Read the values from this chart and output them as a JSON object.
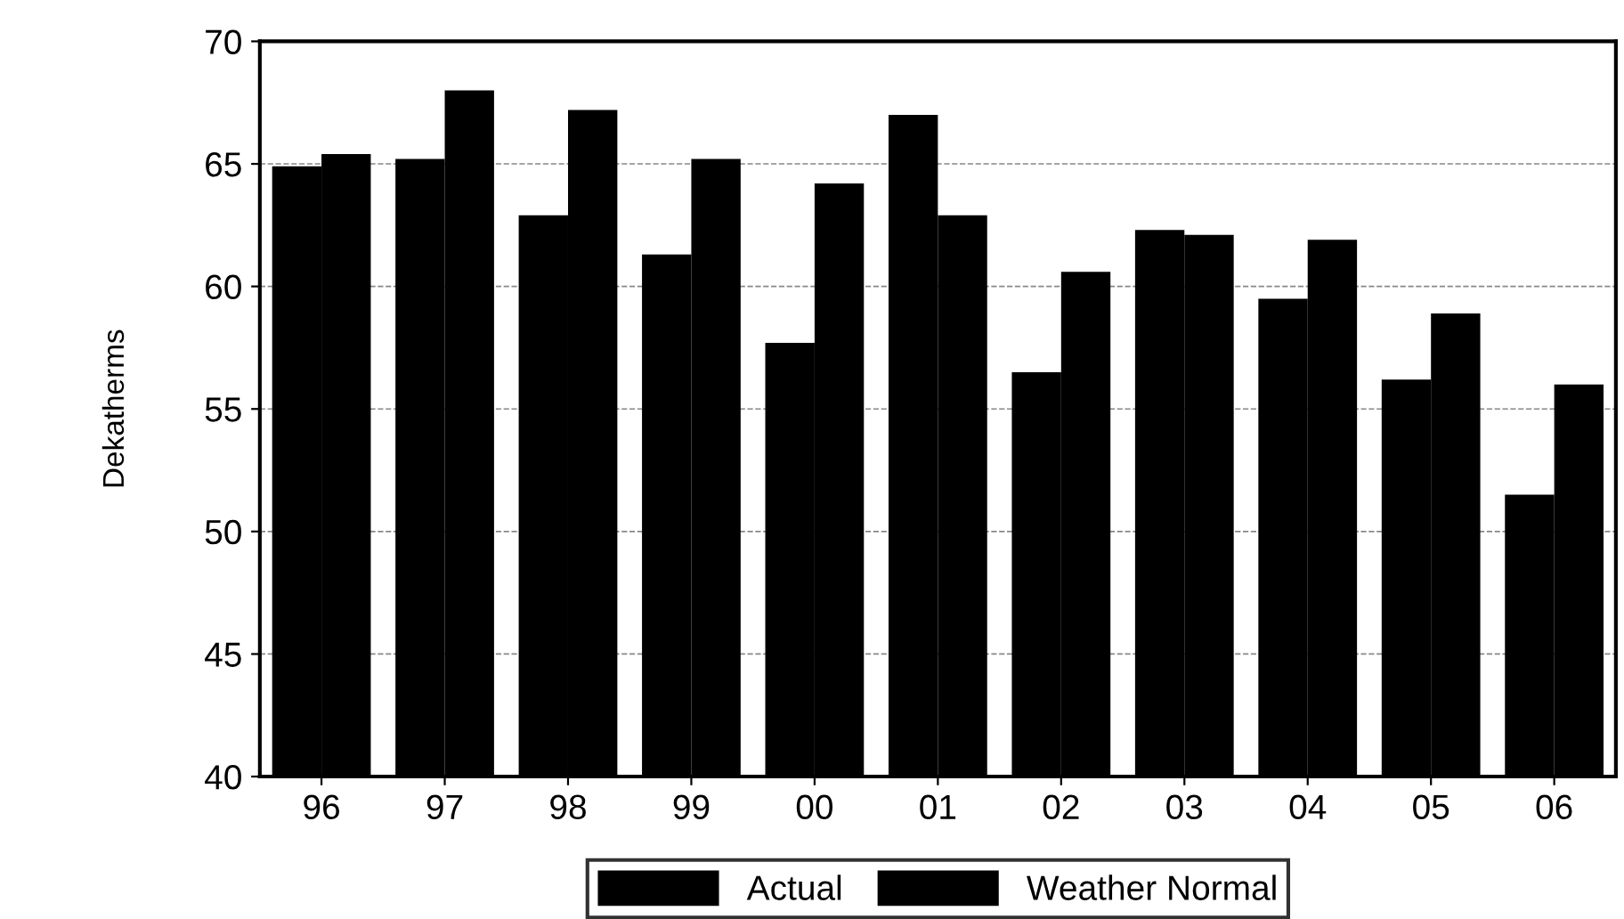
{
  "chart_data": {
    "type": "bar",
    "ylabel": "Dekatherms",
    "categories": [
      "96",
      "97",
      "98",
      "99",
      "00",
      "01",
      "02",
      "03",
      "04",
      "05",
      "06"
    ],
    "series": [
      {
        "name": "Actual",
        "color": "#000000",
        "values": [
          64.9,
          65.2,
          62.9,
          61.3,
          57.7,
          67.0,
          56.5,
          62.3,
          59.5,
          56.2,
          51.5
        ]
      },
      {
        "name": "Weather Normal",
        "color": "#000000",
        "values": [
          65.4,
          68.0,
          67.2,
          65.2,
          64.2,
          62.9,
          60.6,
          62.1,
          61.9,
          58.9,
          56.0
        ]
      }
    ],
    "ylim": [
      40,
      70
    ],
    "yticks": [
      40,
      45,
      50,
      55,
      60,
      65,
      70
    ],
    "grid": "y",
    "line_style": "dashed",
    "legend": "bottom"
  }
}
